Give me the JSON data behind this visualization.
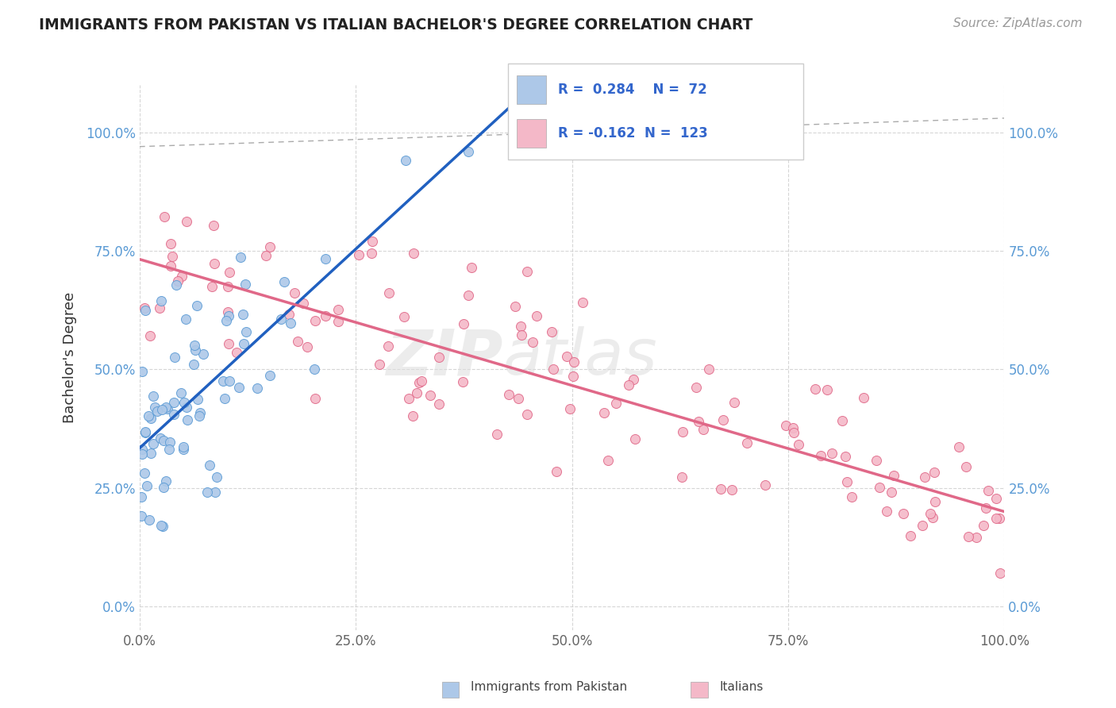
{
  "title": "IMMIGRANTS FROM PAKISTAN VS ITALIAN BACHELOR'S DEGREE CORRELATION CHART",
  "source_text": "Source: ZipAtlas.com",
  "ylabel": "Bachelor's Degree",
  "xlim": [
    0.0,
    1.0
  ],
  "ylim": [
    -0.05,
    1.1
  ],
  "ytick_labels": [
    "0.0%",
    "25.0%",
    "50.0%",
    "75.0%",
    "100.0%"
  ],
  "ytick_values": [
    0.0,
    0.25,
    0.5,
    0.75,
    1.0
  ],
  "xtick_labels": [
    "0.0%",
    "25.0%",
    "50.0%",
    "75.0%",
    "100.0%"
  ],
  "xtick_values": [
    0.0,
    0.25,
    0.5,
    0.75,
    1.0
  ],
  "blue_R": 0.284,
  "blue_N": 72,
  "pink_R": -0.162,
  "pink_N": 123,
  "blue_color": "#adc8e8",
  "blue_edge_color": "#5b9bd5",
  "pink_color": "#f4b8c8",
  "pink_edge_color": "#e06888",
  "blue_line_color": "#2060c0",
  "pink_line_color": "#e06888",
  "legend_label_blue": "Immigrants from Pakistan",
  "legend_label_pink": "Italians",
  "watermark_zip": "ZIP",
  "watermark_atlas": "atlas",
  "background_color": "#ffffff",
  "grid_color": "#cccccc",
  "title_color": "#222222",
  "marker_size": 75,
  "tick_color": "#5b9bd5",
  "legend_text_color": "#3366cc"
}
